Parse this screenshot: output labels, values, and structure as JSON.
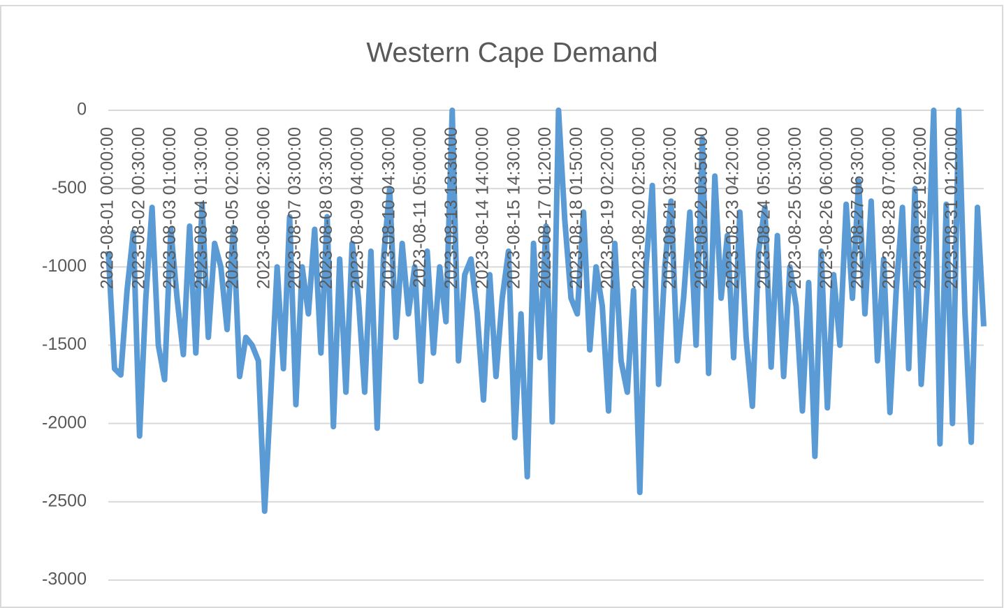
{
  "chart_data": {
    "type": "line",
    "title": "Western Cape Demand",
    "color": "#5b9bd5",
    "categories": [
      "2023-08-01 00:00:00",
      null,
      null,
      null,
      null,
      "2023-08-02 00:30:00",
      null,
      null,
      null,
      null,
      "2023-08-03 01:00:00",
      null,
      null,
      null,
      null,
      "2023-08-04 01:30:00",
      null,
      null,
      null,
      null,
      "2023-08-05 02:00:00",
      null,
      null,
      null,
      null,
      "2023-08-06 02:30:00",
      null,
      null,
      null,
      null,
      "2023-08-07 03:00:00",
      null,
      null,
      null,
      null,
      "2023-08-08 03:30:00",
      null,
      null,
      null,
      null,
      "2023-08-09 04:00:00",
      null,
      null,
      null,
      null,
      "2023-08-10 04:30:00",
      null,
      null,
      null,
      null,
      "2023-08-11 05:00:00",
      null,
      null,
      null,
      null,
      "2023-08-13 13:30:00",
      null,
      null,
      null,
      null,
      "2023-08-14 14:00:00",
      null,
      null,
      null,
      null,
      "2023-08-15 14:30:00",
      null,
      null,
      null,
      null,
      "2023-08-17 01:20:00",
      null,
      null,
      null,
      null,
      "2023-08-18 01:50:00",
      null,
      null,
      null,
      null,
      "2023-08-19 02:20:00",
      null,
      null,
      null,
      null,
      "2023-08-20 02:50:00",
      null,
      null,
      null,
      null,
      "2023-08-21 03:20:00",
      null,
      null,
      null,
      null,
      "2023-08-22 03:50:00",
      null,
      null,
      null,
      null,
      "2023-08-23 04:20:00",
      null,
      null,
      null,
      null,
      "2023-08-24 05:00:00",
      null,
      null,
      null,
      null,
      "2023-08-25 05:30:00",
      null,
      null,
      null,
      null,
      "2023-08-26 06:00:00",
      null,
      null,
      null,
      null,
      "2023-08-27 06:30:00",
      null,
      null,
      null,
      null,
      "2023-08-28 07:00:00",
      null,
      null,
      null,
      null,
      "2023-08-29 19:20:00",
      null,
      null,
      null,
      null,
      "2023-08-31 01:20:00",
      null,
      null,
      null,
      null,
      null
    ],
    "values": [
      -900,
      -1650,
      -1690,
      -1150,
      -780,
      -2080,
      -1200,
      -620,
      -1500,
      -1720,
      -760,
      -1200,
      -1560,
      -740,
      -1550,
      -600,
      -1450,
      -850,
      -1000,
      -1400,
      -750,
      -1700,
      -1450,
      -1500,
      -1600,
      -2560,
      -1800,
      -1000,
      -1650,
      -680,
      -1880,
      -1000,
      -1300,
      -760,
      -1550,
      -680,
      -2020,
      -950,
      -1800,
      -850,
      -1200,
      -1800,
      -900,
      -2030,
      -950,
      -500,
      -1450,
      -850,
      -1300,
      -1000,
      -1730,
      -900,
      -1550,
      -1000,
      -1350,
      0,
      -1600,
      -1050,
      -950,
      -1300,
      -1850,
      -1050,
      -1700,
      -1200,
      -900,
      -2090,
      -1300,
      -2340,
      -850,
      -1580,
      -740,
      -1990,
      0,
      -700,
      -1200,
      -1300,
      -650,
      -1530,
      -1000,
      -1250,
      -1920,
      -850,
      -1600,
      -1800,
      -1150,
      -2440,
      -1000,
      -480,
      -1750,
      -1000,
      -580,
      -1600,
      -1200,
      -650,
      -1500,
      -180,
      -1680,
      -420,
      -1200,
      -800,
      -1580,
      -650,
      -1450,
      -1890,
      -900,
      -620,
      -1640,
      -800,
      -1700,
      -1000,
      -1250,
      -1920,
      -1100,
      -2210,
      -900,
      -1900,
      -1050,
      -1500,
      -600,
      -1200,
      -450,
      -1300,
      -580,
      -1600,
      -950,
      -1930,
      -1150,
      -620,
      -1650,
      -500,
      -1750,
      -1100,
      0,
      -2130,
      -600,
      -2000,
      0,
      -1300,
      -2120,
      -620,
      -1380
    ],
    "ylim": [
      -3000,
      0
    ],
    "yticks": [
      0,
      -500,
      -1000,
      -1500,
      -2000,
      -2500,
      -3000
    ],
    "grid": true
  }
}
